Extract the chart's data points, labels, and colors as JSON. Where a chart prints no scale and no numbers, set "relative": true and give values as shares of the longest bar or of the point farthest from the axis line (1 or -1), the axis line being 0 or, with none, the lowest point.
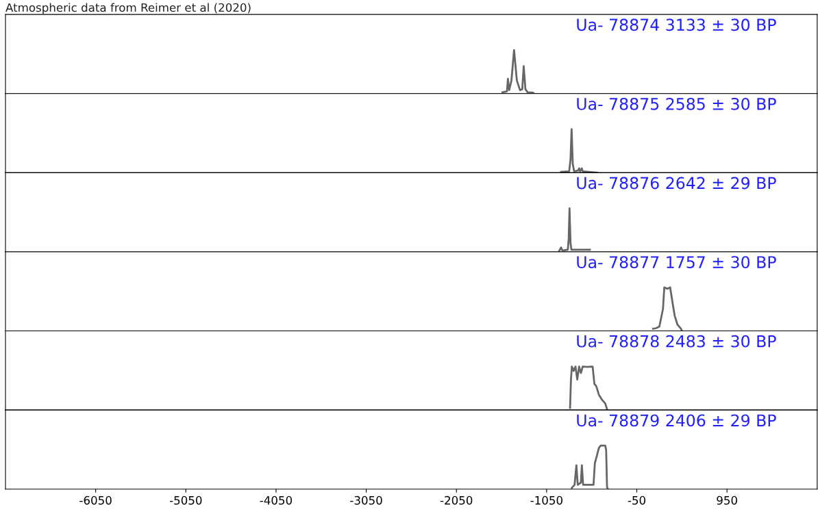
{
  "chart_data": [
    {
      "type": "line",
      "relative": true,
      "annotations": [
        "Atmospheric data from Reimer et al (2020)",
        "Ua- 78874 3133 ± 30 BP"
      ],
      "xlim": [
        -7050,
        1950
      ],
      "tick_labels": false,
      "series": [
        {
          "color": "#666666",
          "x": [
            -1540,
            -1490,
            -1479,
            -1465,
            -1440,
            -1411,
            -1380,
            -1345,
            -1320,
            -1304,
            -1285,
            -1260,
            -1200,
            -1190
          ],
          "values": [
            0.03,
            0.05,
            0.34,
            0.08,
            0.3,
            1,
            0.3,
            0.08,
            0.1,
            0.63,
            0.1,
            0.03,
            0.02,
            0
          ]
        }
      ]
    },
    {
      "type": "line",
      "relative": true,
      "annotations": [
        "Ua- 78875 2585 ± 30 BP"
      ],
      "xlim": [
        -7050,
        1950
      ],
      "tick_labels": false,
      "series": [
        {
          "color": "#666666",
          "x": [
            -890,
            -800,
            -785,
            -773,
            -760,
            -745,
            -700,
            -690,
            -680,
            -660,
            -650,
            -490
          ],
          "values": [
            0.02,
            0.03,
            0.3,
            1,
            0.2,
            0.03,
            0.05,
            0.1,
            0.03,
            0.1,
            0.03,
            0
          ]
        }
      ]
    },
    {
      "type": "line",
      "relative": true,
      "annotations": [
        "Ua- 78876 2642 ± 29 BP"
      ],
      "xlim": [
        -7050,
        1950
      ],
      "tick_labels": false,
      "series": [
        {
          "color": "#666666",
          "x": [
            -910,
            -890,
            -875,
            -815,
            -805,
            -796,
            -785,
            -775,
            -570
          ],
          "values": [
            0.02,
            0.1,
            0.03,
            0.05,
            0.3,
            1,
            0.2,
            0.05,
            0.05
          ]
        }
      ]
    },
    {
      "type": "line",
      "relative": true,
      "annotations": [
        "Ua- 78877 1757 ± 30 BP"
      ],
      "xlim": [
        -7050,
        1950
      ],
      "tick_labels": false,
      "series": [
        {
          "color": "#666666",
          "x": [
            130,
            160,
            200,
            240,
            255,
            290,
            320,
            350,
            370,
            400,
            440,
            450
          ],
          "values": [
            0.05,
            0.06,
            0.1,
            0.5,
            1,
            0.97,
            1,
            0.6,
            0.35,
            0.15,
            0.05,
            0
          ]
        }
      ]
    },
    {
      "type": "line",
      "relative": true,
      "annotations": [
        "Ua- 78878 2483 ± 30 BP"
      ],
      "xlim": [
        -7050,
        1950
      ],
      "tick_labels": false,
      "series": [
        {
          "color": "#666666",
          "x": [
            -790,
            -780,
            -770,
            -750,
            -730,
            -710,
            -690,
            -670,
            -650,
            -600,
            -540,
            -520,
            -500,
            -470,
            -440,
            -400,
            -380
          ],
          "values": [
            0.05,
            0.7,
            1,
            0.9,
            1,
            0.7,
            1,
            0.85,
            1,
            0.99,
            1,
            0.6,
            0.55,
            0.35,
            0.25,
            0.15,
            0.02
          ]
        }
      ]
    },
    {
      "type": "line",
      "relative": true,
      "annotations": [
        "Ua- 78879 2406 ± 29 BP"
      ],
      "xlim": [
        -7050,
        1950
      ],
      "xticks": [
        -6050,
        -5050,
        -4050,
        -3050,
        -2050,
        -1050,
        -50,
        950
      ],
      "tick_labels": "x",
      "series": [
        {
          "color": "#666666",
          "x": [
            -770,
            -740,
            -720,
            -705,
            -670,
            -659,
            -645,
            -600,
            -530,
            -515,
            -495,
            -470,
            -450,
            -400,
            -390,
            -380,
            -370
          ],
          "values": [
            0.03,
            0.1,
            0.55,
            0.1,
            0.15,
            0.55,
            0.1,
            0.1,
            0.1,
            0.6,
            0.75,
            0.95,
            1,
            1,
            0.9,
            0.05,
            0
          ]
        }
      ]
    }
  ]
}
